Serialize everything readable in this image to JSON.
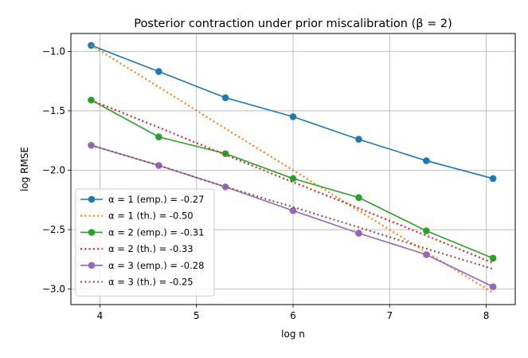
{
  "chart_data": {
    "type": "line",
    "title": "Posterior contraction under prior miscalibration (β = 2)",
    "xlabel": "log n",
    "ylabel": "log RMSE",
    "xlim": [
      3.7,
      8.3
    ],
    "ylim": [
      -3.13,
      -0.85
    ],
    "xticks": [
      4,
      5,
      6,
      7,
      8
    ],
    "xtick_labels": [
      "4",
      "5",
      "6",
      "7",
      "8"
    ],
    "yticks": [
      -1.0,
      -1.5,
      -2.0,
      -2.5,
      -3.0
    ],
    "ytick_labels": [
      "−1.0",
      "−1.5",
      "−2.0",
      "−2.5",
      "−3.0"
    ],
    "grid": true,
    "legend_location": "lower-left",
    "x": [
      3.91,
      4.61,
      5.3,
      6.0,
      6.68,
      7.38,
      8.07
    ],
    "series": [
      {
        "name": "α = 1 (emp.) = -0.27",
        "style": "solid-marker",
        "color": "#1f77b4",
        "values": [
          -0.95,
          -1.17,
          -1.39,
          -1.55,
          -1.74,
          -1.92,
          -2.07
        ]
      },
      {
        "name": "α = 1 (th.) = -0.50",
        "style": "dotted",
        "color": "#ff7f0e",
        "values": [
          -0.95,
          -1.3,
          -1.65,
          -2.0,
          -2.34,
          -2.69,
          -3.03
        ]
      },
      {
        "name": "α = 2 (emp.) = -0.31",
        "style": "solid-marker",
        "color": "#2ca02c",
        "values": [
          -1.41,
          -1.72,
          -1.86,
          -2.07,
          -2.23,
          -2.51,
          -2.74
        ]
      },
      {
        "name": "α = 2 (th.) = -0.33",
        "style": "dotted",
        "color": "#d62728",
        "values": [
          -1.41,
          -1.64,
          -1.87,
          -2.1,
          -2.32,
          -2.55,
          -2.78
        ]
      },
      {
        "name": "α = 3 (emp.) = -0.28",
        "style": "solid-marker",
        "color": "#9467bd",
        "values": [
          -1.79,
          -1.96,
          -2.14,
          -2.34,
          -2.53,
          -2.71,
          -2.98
        ]
      },
      {
        "name": "α = 3 (th.) = -0.25",
        "style": "dotted",
        "color": "#8c564b",
        "values": [
          -1.79,
          -1.96,
          -2.14,
          -2.31,
          -2.48,
          -2.66,
          -2.83
        ]
      }
    ]
  }
}
